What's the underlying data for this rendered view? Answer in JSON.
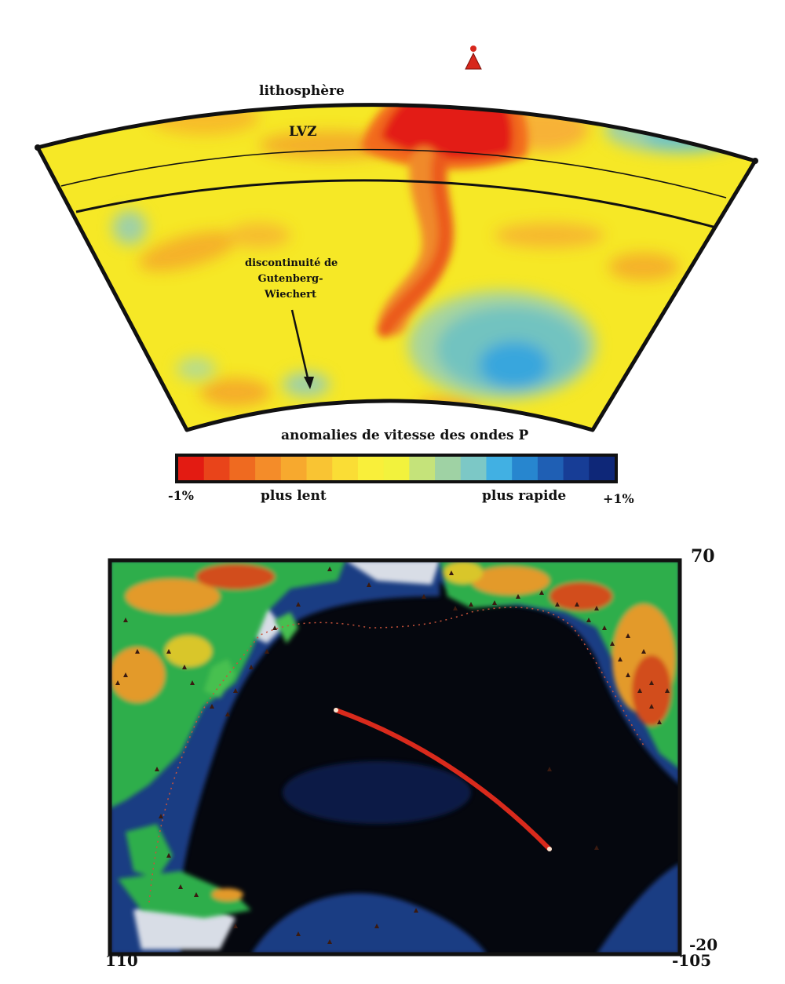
{
  "tomography": {
    "labels": {
      "lithosphere": "lithosphère",
      "lvz": "LVZ",
      "discontinuity": [
        "discontinuité de",
        "Gutenberg-",
        "Wiechert"
      ]
    },
    "colors": {
      "slow_strong": "#e31b12",
      "slow": "#f26a1f",
      "mid_orange": "#f7a32b",
      "neutral": "#f6e826",
      "fast_light": "#9fcf9c",
      "fast": "#6fc4c3",
      "fast_strong": "#2b9ad8"
    }
  },
  "legend": {
    "title": "anomalies de vitesse des ondes P",
    "min_label": "-1%",
    "max_label": "+1%",
    "slow_label": "plus lent",
    "fast_label": "plus rapide",
    "colors": [
      "#e31b12",
      "#e9441a",
      "#ef6a20",
      "#f48c29",
      "#f7a92e",
      "#f9c433",
      "#fadd35",
      "#f9ef3a",
      "#f2f23d",
      "#c5e37a",
      "#9fd2a4",
      "#7cc8c6",
      "#41b0e3",
      "#2786cf",
      "#1f5fb4",
      "#173d96",
      "#0e2778"
    ]
  },
  "map": {
    "corner_labels": {
      "top_right": "70",
      "bottom_right_lat": "-20",
      "bottom_left_lon": "110",
      "bottom_right_lon": "-105"
    },
    "colors": {
      "ocean_deep": "#05070e",
      "ocean_shelf": "#1d3f8a",
      "ice": "#d8dde6",
      "lowland": "#2fae4c",
      "highland": "#e39a2a",
      "peak": "#d24e1a",
      "track": "#d92a1c"
    }
  }
}
